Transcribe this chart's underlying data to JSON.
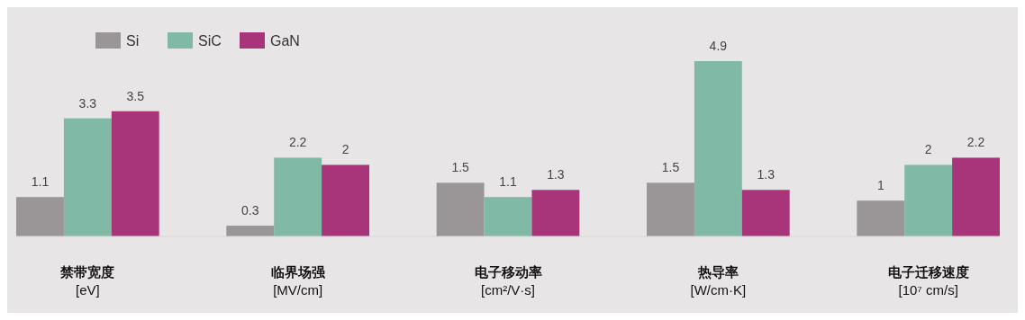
{
  "chart_data": {
    "type": "bar",
    "categories": [
      "禁带宽度\n[eV]",
      "临界场强\n[MV/cm]",
      "电子移动率\n[cm²/V·s]",
      "热导率\n[W/cm·K]",
      "电子迁移速度\n[10⁷ cm/s]"
    ],
    "series": [
      {
        "name": "Si",
        "color": "#9a9597",
        "values": [
          1.1,
          0.3,
          1.5,
          1.5,
          1
        ]
      },
      {
        "name": "SiC",
        "color": "#80b9a5",
        "values": [
          3.3,
          2.2,
          1.1,
          4.9,
          2
        ]
      },
      {
        "name": "GaN",
        "color": "#a8357a",
        "values": [
          3.5,
          2,
          1.3,
          1.3,
          2.2
        ]
      }
    ],
    "data_labels": true,
    "legend": "top left"
  }
}
